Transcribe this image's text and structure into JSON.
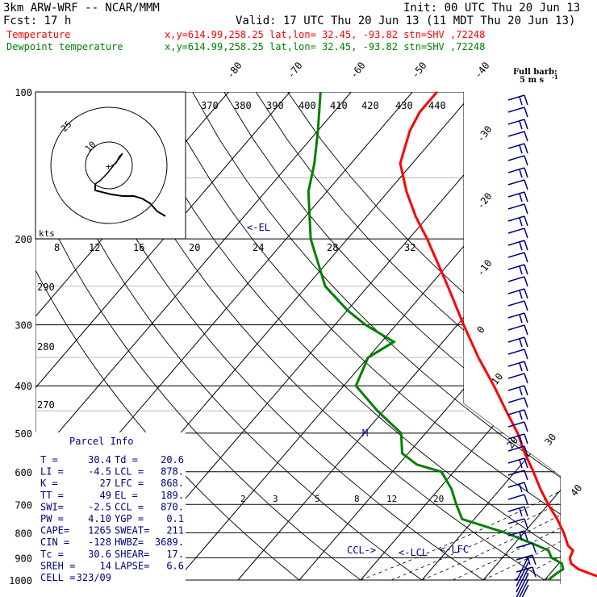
{
  "header": {
    "model": "3km ARW-WRF -- NCAR/MMM",
    "init": "Init: 00 UTC Thu 20 Jun 13",
    "fcst": "Fcst:    17 h",
    "valid": "Valid: 17 UTC Thu 20 Jun 13 (11 MDT Thu 20 Jun 13)",
    "temp_label": "Temperature",
    "temp_info": "x,y=614.99,258.25   lat,lon= 32.45, -93.82  stn=SHV ,72248",
    "dew_label": "Dewpoint temperature",
    "dew_info": "x,y=614.99,258.25   lat,lon= 32.45, -93.82  stn=SHV ,72248"
  },
  "colors": {
    "temperature": "#ff0000",
    "dewpoint": "#008000",
    "labels": "#000080",
    "grid": "#000000"
  },
  "barb_key": {
    "title": "Full barb:",
    "value": "5 m s",
    "exp": "-1"
  },
  "parcel_info": {
    "title": "Parcel Info",
    "rows": [
      [
        "T  =",
        "30.4",
        "Td  =",
        "20.6"
      ],
      [
        "LI =",
        "-4.5",
        "LCL =",
        "878."
      ],
      [
        "K  =",
        "27",
        "LFC =",
        "868."
      ],
      [
        "TT =",
        "49",
        "EL  =",
        "189."
      ],
      [
        "SWI=",
        "-2.5",
        "CCL =",
        "870."
      ],
      [
        "PW =",
        "4.10",
        "YGP =",
        "0.1"
      ],
      [
        "CAPE=",
        "1265",
        "SWEAT=",
        "211"
      ],
      [
        "CIN =",
        "-128",
        "HWBZ=",
        "3689."
      ],
      [
        "Tc =",
        "30.6",
        "SHEAR=",
        "17."
      ],
      [
        "SREH =",
        "14",
        "LAPSE=",
        "6.6"
      ],
      [
        "CELL =",
        "323/09",
        "",
        ""
      ]
    ]
  },
  "annotations": {
    "el": "<-EL",
    "lcl": "<-LCL",
    "lfc": "<-LFC",
    "ccl": "CCL->",
    "m": "M"
  },
  "hodograph": {
    "unit": "kts",
    "rings": [
      "10",
      "25"
    ]
  },
  "chart_data": {
    "type": "skew-T log-p",
    "pressure_levels": [
      100,
      200,
      300,
      400,
      500,
      600,
      700,
      800,
      900,
      1000
    ],
    "isotherm_labels": [
      "-80",
      "-70",
      "-60",
      "-50",
      "-40",
      "-30",
      "-20",
      "-10",
      "0",
      "10",
      "20",
      "30",
      "40"
    ],
    "dry_adiabat_labels": [
      "370",
      "380",
      "390",
      "400",
      "410",
      "420",
      "430",
      "440"
    ],
    "potential_temp_side": [
      "290",
      "280",
      "270"
    ],
    "mixing_ratio_row1": [
      "8",
      "12",
      "16",
      "20",
      "24",
      "28",
      "32"
    ],
    "mixing_ratio_row2": [
      "2",
      "3",
      "5",
      "8",
      "12",
      "20"
    ],
    "series": [
      {
        "name": "Temperature",
        "points": [
          [
            1000,
            30.4
          ],
          [
            970,
            26.5
          ],
          [
            950,
            24
          ],
          [
            925,
            22
          ],
          [
            900,
            21
          ],
          [
            870,
            20.5
          ],
          [
            850,
            19
          ],
          [
            800,
            16.5
          ],
          [
            750,
            13.5
          ],
          [
            700,
            10
          ],
          [
            650,
            6.5
          ],
          [
            600,
            3
          ],
          [
            550,
            -1
          ],
          [
            500,
            -5
          ],
          [
            450,
            -10
          ],
          [
            400,
            -15.5
          ],
          [
            350,
            -22
          ],
          [
            300,
            -29
          ],
          [
            250,
            -37
          ],
          [
            200,
            -47
          ],
          [
            180,
            -52
          ],
          [
            160,
            -57
          ],
          [
            140,
            -62
          ],
          [
            120,
            -65
          ],
          [
            110,
            -66
          ],
          [
            100,
            -66
          ]
        ]
      },
      {
        "name": "Dewpoint temperature",
        "points": [
          [
            1000,
            20.6
          ],
          [
            970,
            21
          ],
          [
            950,
            21.5
          ],
          [
            925,
            20.5
          ],
          [
            900,
            18
          ],
          [
            870,
            16.5
          ],
          [
            850,
            14
          ],
          [
            800,
            7
          ],
          [
            750,
            -2
          ],
          [
            700,
            -5
          ],
          [
            650,
            -8
          ],
          [
            600,
            -12
          ],
          [
            580,
            -17
          ],
          [
            550,
            -21
          ],
          [
            500,
            -24
          ],
          [
            450,
            -31
          ],
          [
            400,
            -38
          ],
          [
            350,
            -40
          ],
          [
            325,
            -38
          ],
          [
            300,
            -45
          ],
          [
            280,
            -50
          ],
          [
            250,
            -57
          ],
          [
            200,
            -66
          ],
          [
            160,
            -73
          ],
          [
            140,
            -76
          ],
          [
            120,
            -80
          ],
          [
            100,
            -85
          ]
        ]
      }
    ]
  }
}
